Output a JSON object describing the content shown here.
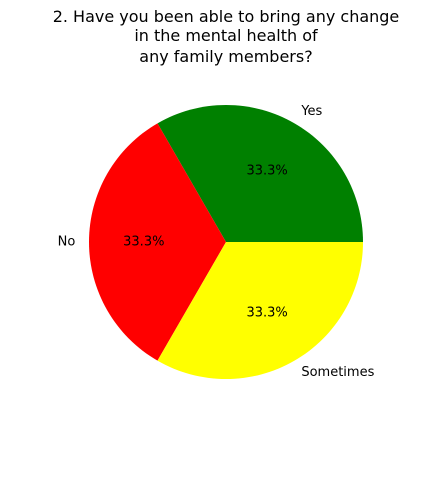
{
  "chart_data": {
    "type": "pie",
    "title_lines": [
      "2. Have you been able to bring any change",
      "in the mental health of",
      "any family members?"
    ],
    "labels": [
      "Yes",
      "No",
      "Sometimes"
    ],
    "values": [
      1,
      1,
      1
    ],
    "percent_labels": [
      "33.3%",
      "33.3%",
      "33.3%"
    ],
    "colors": [
      "#008000",
      "#ff0000",
      "#ffff00"
    ],
    "start_angle_deg": 0,
    "direction": "counterclockwise"
  }
}
